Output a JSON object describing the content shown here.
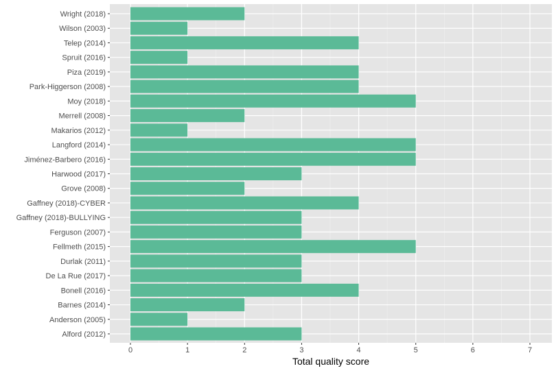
{
  "chart_data": {
    "type": "bar",
    "orientation": "horizontal",
    "categories": [
      "Wright (2018)",
      "Wilson (2003)",
      "Telep (2014)",
      "Spruit (2016)",
      "Piza (2019)",
      "Park-Higgerson (2008)",
      "Moy (2018)",
      "Merrell (2008)",
      "Makarios (2012)",
      "Langford (2014)",
      "Jiménez-Barbero (2016)",
      "Harwood (2017)",
      "Grove (2008)",
      "Gaffney (2018)-CYBER",
      "Gaffney (2018)-BULLYING",
      "Ferguson (2007)",
      "Fellmeth (2015)",
      "Durlak (2011)",
      "De La Rue (2017)",
      "Bonell (2016)",
      "Barnes (2014)",
      "Anderson (2005)",
      "Alford (2012)"
    ],
    "values": [
      2,
      1,
      4,
      1,
      4,
      4,
      5,
      2,
      1,
      5,
      5,
      3,
      2,
      4,
      3,
      3,
      5,
      3,
      3,
      4,
      2,
      1,
      3
    ],
    "title": "",
    "xlabel": "Total quality score",
    "ylabel": "",
    "xlim": [
      0,
      7
    ],
    "x_ticks": [
      0,
      1,
      2,
      3,
      4,
      5,
      6,
      7
    ],
    "grid": true,
    "colors": {
      "bar": "#5BBA97",
      "panel_background": "#E5E5E5",
      "grid_major": "#FFFFFF",
      "grid_minor": "#F2F2F2",
      "tick_text": "#4D4D4D",
      "axis_title": "#000000"
    }
  }
}
